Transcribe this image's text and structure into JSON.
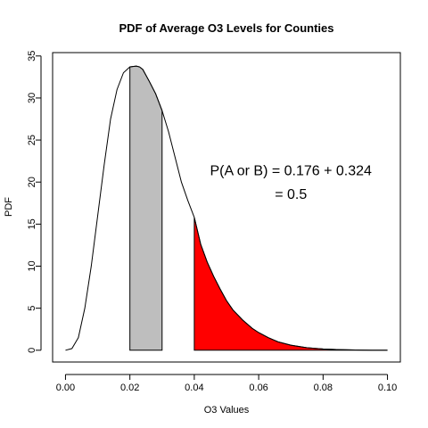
{
  "chart_data": {
    "type": "area",
    "title": "PDF of Average O3 Levels for Counties",
    "xlabel": "O3 Values",
    "ylabel": "PDF",
    "xlim": [
      -0.004,
      0.104
    ],
    "ylim": [
      -1.4,
      35.4
    ],
    "x_ticks": [
      0.0,
      0.02,
      0.04,
      0.06,
      0.08,
      0.1
    ],
    "x_tick_labels": [
      "0.00",
      "0.02",
      "0.04",
      "0.06",
      "0.08",
      "0.10"
    ],
    "y_ticks": [
      0,
      5,
      10,
      15,
      20,
      25,
      30,
      35
    ],
    "y_tick_labels": [
      "0",
      "5",
      "10",
      "15",
      "20",
      "25",
      "30",
      "35"
    ],
    "grid": false,
    "series": [
      {
        "x": [
          0.0,
          0.002,
          0.004,
          0.006,
          0.008,
          0.01,
          0.012,
          0.014,
          0.016,
          0.018,
          0.02,
          0.022,
          0.023,
          0.024,
          0.026,
          0.028,
          0.03,
          0.032,
          0.034,
          0.036,
          0.038,
          0.04,
          0.042,
          0.044,
          0.046,
          0.048,
          0.05,
          0.052,
          0.055,
          0.058,
          0.06,
          0.063,
          0.066,
          0.07,
          0.075,
          0.08,
          0.085,
          0.09,
          0.095,
          0.1
        ],
        "y": [
          0.0,
          0.2,
          1.5,
          5.0,
          10.0,
          16.0,
          22.0,
          27.5,
          31.0,
          33.0,
          33.7,
          33.8,
          33.7,
          33.4,
          32.0,
          30.5,
          28.5,
          26.0,
          23.0,
          20.0,
          17.8,
          15.8,
          12.6,
          10.5,
          8.8,
          7.3,
          5.9,
          4.8,
          3.6,
          2.6,
          2.1,
          1.5,
          1.0,
          0.6,
          0.3,
          0.15,
          0.07,
          0.03,
          0.01,
          0.0
        ]
      }
    ],
    "shaded_regions": [
      {
        "from": 0.02,
        "to": 0.03,
        "color": "#bebebe"
      },
      {
        "from": 0.04,
        "to": 0.1,
        "color": "#ff0000"
      }
    ],
    "annotations": [
      {
        "text": "P(A or B) = 0.176 + 0.324",
        "x": 0.07,
        "y": 20.8
      },
      {
        "text": "= 0.5",
        "x": 0.07,
        "y": 18.0
      }
    ]
  }
}
